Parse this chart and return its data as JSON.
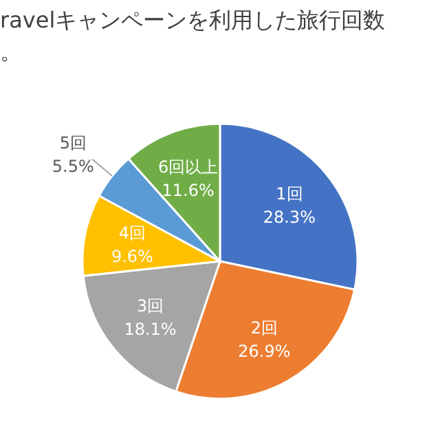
{
  "chart_data": {
    "type": "pie",
    "title": "ravelキャンペーンを利用した旅行回数",
    "subtitle": "。",
    "categories": [
      "1回",
      "2回",
      "3回",
      "4回",
      "5回",
      "6回以上"
    ],
    "values": [
      28.3,
      26.9,
      18.1,
      9.6,
      5.5,
      11.6
    ],
    "value_labels": [
      "28.3%",
      "26.9%",
      "18.1%",
      "9.6%",
      "5.5%",
      "11.6%"
    ],
    "colors": [
      "#4472c4",
      "#ed7d31",
      "#a5a5a5",
      "#ffc000",
      "#5b9bd5",
      "#70ad47"
    ]
  }
}
